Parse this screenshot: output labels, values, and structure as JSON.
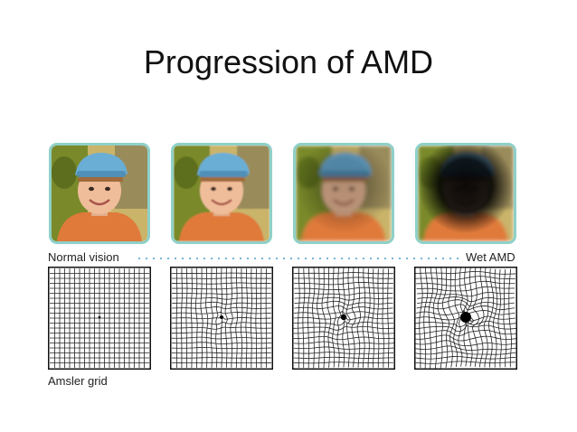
{
  "slide": {
    "title": "Progression of AMD"
  },
  "diagram": {
    "start_label": "Normal vision",
    "end_label": "Wet AMD",
    "grid_caption": "Amsler grid",
    "stages": [
      {
        "blur": 0,
        "scotoma": 0,
        "distortion": 0,
        "dot": 1.3
      },
      {
        "blur": 0.7,
        "scotoma": 0,
        "distortion": 0.35,
        "dot": 2
      },
      {
        "blur": 2.2,
        "scotoma": 0.25,
        "distortion": 0.6,
        "dot": 3.2
      },
      {
        "blur": 2.2,
        "scotoma": 0.95,
        "distortion": 1.0,
        "dot": 6
      }
    ]
  },
  "colors": {
    "frame": "#8fd0c8",
    "dots": "#6fb3d6",
    "cap": "#6aaed6",
    "shirt": "#e07a3a",
    "foliage": "#7a8a2a"
  }
}
